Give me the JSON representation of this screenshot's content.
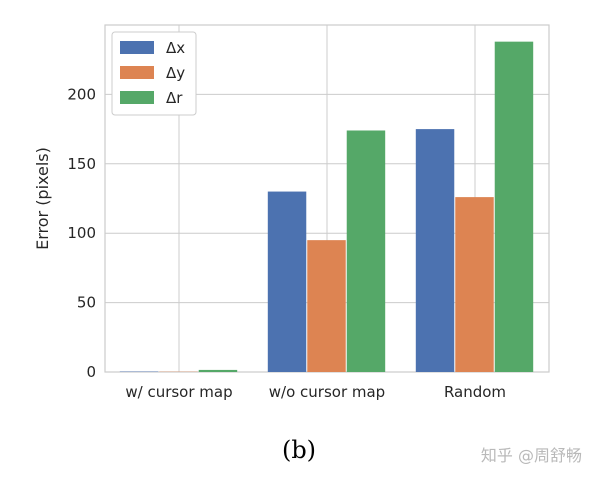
{
  "chart_data": {
    "type": "bar",
    "categories": [
      "w/ cursor map",
      "w/o cursor map",
      "Random"
    ],
    "series": [
      {
        "name": "Δx",
        "values": [
          0.3,
          130,
          175
        ],
        "color": "#4c72b0"
      },
      {
        "name": "Δy",
        "values": [
          0.2,
          95,
          126
        ],
        "color": "#dd8452"
      },
      {
        "name": "Δr",
        "values": [
          1.5,
          174,
          238
        ],
        "color": "#55a868"
      }
    ],
    "ylabel": "Error (pixels)",
    "ylim": [
      0,
      250
    ],
    "yticks": [
      0,
      50,
      100,
      150,
      200
    ],
    "grid": true,
    "legend_position": "top-left"
  },
  "caption": "(b)",
  "watermark": "知乎 @周舒畅"
}
